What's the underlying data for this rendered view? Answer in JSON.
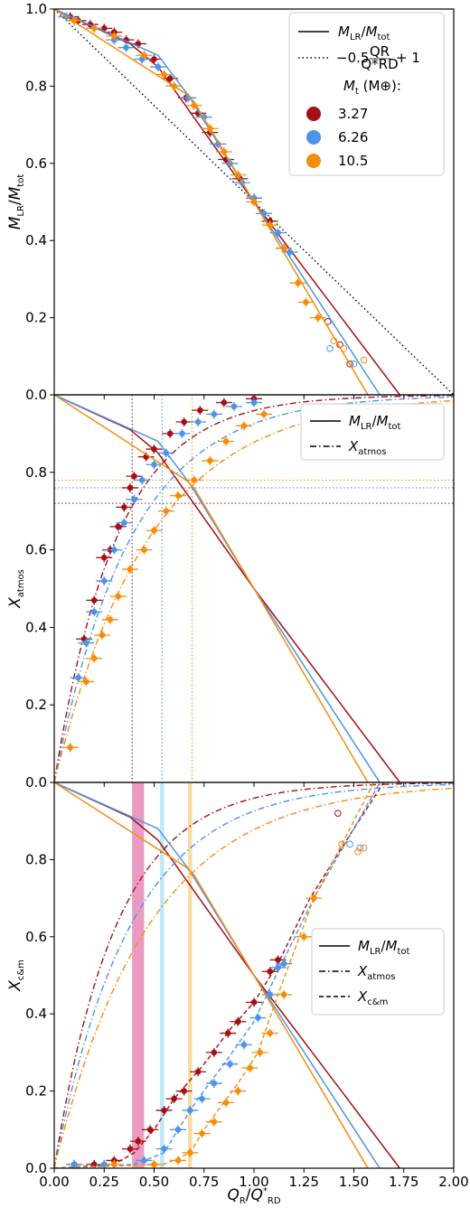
{
  "colors": {
    "mt_3_27": "#a50f15",
    "mt_6_26": "#4b94e8",
    "mt_10_5": "#f58d0b",
    "axis": "#000000",
    "band_3_27": "#e78ab7",
    "band_6_26": "#b4e3f4",
    "band_10_5": "#fad58b"
  },
  "chart_data": [
    {
      "type": "scatter",
      "panel": "top",
      "xlabel": "QR/Q*RD",
      "ylabel": "MLR/Mtot",
      "xlim": [
        0,
        2
      ],
      "ylim": [
        0,
        1
      ],
      "xticks": [
        "0.00",
        "0.25",
        "0.50",
        "0.75",
        "1.00",
        "1.25",
        "1.50",
        "1.75",
        "2.00"
      ],
      "yticks": [
        "0.0",
        "0.2",
        "0.4",
        "0.6",
        "0.8",
        "1.0"
      ],
      "legend": {
        "placement": "top-right",
        "entries": [
          "MLR/Mtot",
          "−0.5 QR/Q*RD + 1"
        ],
        "mt_title": "Mt (M⊕):",
        "mt_values": [
          "3.27",
          "6.26",
          "10.5"
        ]
      },
      "reference_line": [
        [
          0,
          1
        ],
        [
          2,
          0
        ]
      ],
      "series": [
        {
          "name": "3.27",
          "curve": [
            [
              0,
              1
            ],
            [
              0.38,
              0.91
            ],
            [
              0.52,
              0.85
            ],
            [
              1.0,
              0.5
            ],
            [
              1.73,
              0
            ]
          ],
          "points": [
            [
              0.08,
              0.98
            ],
            [
              0.12,
              0.97
            ],
            [
              0.18,
              0.96
            ],
            [
              0.25,
              0.95
            ],
            [
              0.3,
              0.94
            ],
            [
              0.36,
              0.92
            ],
            [
              0.42,
              0.91
            ],
            [
              0.5,
              0.87
            ],
            [
              0.58,
              0.82
            ],
            [
              0.66,
              0.77
            ],
            [
              0.72,
              0.73
            ],
            [
              0.78,
              0.68
            ],
            [
              0.86,
              0.61
            ],
            [
              0.93,
              0.56
            ],
            [
              1.0,
              0.51
            ],
            [
              1.08,
              0.45
            ],
            [
              1.15,
              0.38
            ]
          ],
          "open_points": [
            [
              1.37,
              0.19
            ],
            [
              1.43,
              0.13
            ],
            [
              1.48,
              0.08
            ]
          ]
        },
        {
          "name": "6.26",
          "curve": [
            [
              0,
              1
            ],
            [
              0.52,
              0.88
            ],
            [
              0.68,
              0.77
            ],
            [
              1.0,
              0.5
            ],
            [
              1.63,
              0
            ]
          ],
          "points": [
            [
              0.06,
              0.98
            ],
            [
              0.1,
              0.97
            ],
            [
              0.2,
              0.95
            ],
            [
              0.3,
              0.92
            ],
            [
              0.36,
              0.9
            ],
            [
              0.44,
              0.87
            ],
            [
              0.52,
              0.85
            ],
            [
              0.6,
              0.8
            ],
            [
              0.67,
              0.77
            ],
            [
              0.75,
              0.72
            ],
            [
              0.82,
              0.65
            ],
            [
              0.88,
              0.6
            ],
            [
              0.94,
              0.55
            ],
            [
              1.0,
              0.51
            ],
            [
              1.05,
              0.47
            ],
            [
              1.12,
              0.42
            ],
            [
              1.18,
              0.37
            ]
          ],
          "open_points": [
            [
              1.38,
              0.12
            ],
            [
              1.5,
              0.08
            ]
          ]
        },
        {
          "name": "10.5",
          "curve": [
            [
              0,
              1
            ],
            [
              0.66,
              0.78
            ],
            [
              0.7,
              0.76
            ],
            [
              1.0,
              0.5
            ],
            [
              1.57,
              0
            ]
          ],
          "points": [
            [
              0.1,
              0.97
            ],
            [
              0.2,
              0.95
            ],
            [
              0.3,
              0.93
            ],
            [
              0.45,
              0.88
            ],
            [
              0.55,
              0.83
            ],
            [
              0.6,
              0.8
            ],
            [
              0.7,
              0.75
            ],
            [
              0.78,
              0.69
            ],
            [
              0.85,
              0.63
            ],
            [
              0.92,
              0.57
            ],
            [
              1.0,
              0.5
            ],
            [
              1.08,
              0.44
            ],
            [
              1.15,
              0.38
            ],
            [
              1.22,
              0.29
            ],
            [
              1.26,
              0.24
            ],
            [
              1.32,
              0.2
            ]
          ],
          "open_points": [
            [
              1.4,
              0.14
            ],
            [
              1.45,
              0.12
            ],
            [
              1.55,
              0.09
            ]
          ]
        }
      ]
    },
    {
      "type": "scatter",
      "panel": "middle",
      "xlabel": "QR/Q*RD",
      "ylabel": "Xatmos",
      "xlim": [
        0,
        2
      ],
      "ylim": [
        0,
        1
      ],
      "xticks": [
        "0.00",
        "0.25",
        "0.50",
        "0.75",
        "1.00",
        "1.25",
        "1.50",
        "1.75",
        "2.00"
      ],
      "yticks": [
        "0.0",
        "0.2",
        "0.4",
        "0.6",
        "0.8"
      ],
      "legend": {
        "placement": "top-right",
        "entries": [
          "MLR/Mtot",
          "Xatmos"
        ]
      },
      "crossings": [
        {
          "name": "3.27",
          "x": 0.39,
          "y": 0.72
        },
        {
          "name": "6.26",
          "x": 0.54,
          "y": 0.76
        },
        {
          "name": "10.5",
          "x": 0.69,
          "y": 0.78
        }
      ],
      "series": [
        {
          "name": "3.27",
          "xatmos_k": 3.2,
          "points": [
            [
              0.15,
              0.37
            ],
            [
              0.2,
              0.47
            ],
            [
              0.25,
              0.58
            ],
            [
              0.28,
              0.6
            ],
            [
              0.32,
              0.66
            ],
            [
              0.35,
              0.71
            ],
            [
              0.38,
              0.76
            ],
            [
              0.4,
              0.79
            ],
            [
              0.46,
              0.84
            ],
            [
              0.5,
              0.86
            ],
            [
              0.58,
              0.9
            ],
            [
              0.65,
              0.93
            ],
            [
              0.73,
              0.96
            ],
            [
              0.85,
              0.98
            ],
            [
              1.0,
              0.99
            ]
          ]
        },
        {
          "name": "6.26",
          "xatmos_k": 2.6,
          "points": [
            [
              0.08,
              0.09
            ],
            [
              0.12,
              0.27
            ],
            [
              0.16,
              0.36
            ],
            [
              0.2,
              0.44
            ],
            [
              0.25,
              0.52
            ],
            [
              0.3,
              0.6
            ],
            [
              0.35,
              0.67
            ],
            [
              0.4,
              0.73
            ],
            [
              0.44,
              0.78
            ],
            [
              0.5,
              0.82
            ],
            [
              0.56,
              0.85
            ],
            [
              0.64,
              0.9
            ],
            [
              0.72,
              0.93
            ],
            [
              0.8,
              0.95
            ],
            [
              0.9,
              0.97
            ],
            [
              1.0,
              0.98
            ]
          ]
        },
        {
          "name": "10.5",
          "xatmos_k": 2.1,
          "points": [
            [
              0.08,
              0.09
            ],
            [
              0.16,
              0.26
            ],
            [
              0.2,
              0.32
            ],
            [
              0.24,
              0.38
            ],
            [
              0.28,
              0.42
            ],
            [
              0.32,
              0.48
            ],
            [
              0.38,
              0.55
            ],
            [
              0.45,
              0.6
            ],
            [
              0.5,
              0.65
            ],
            [
              0.56,
              0.7
            ],
            [
              0.62,
              0.74
            ],
            [
              0.7,
              0.78
            ],
            [
              0.78,
              0.83
            ],
            [
              0.86,
              0.88
            ],
            [
              0.95,
              0.92
            ],
            [
              1.05,
              0.95
            ]
          ]
        }
      ]
    },
    {
      "type": "scatter",
      "panel": "bottom",
      "xlabel": "QR/Q*RD",
      "ylabel": "Xc&m",
      "xlim": [
        0,
        2
      ],
      "ylim": [
        0,
        1
      ],
      "xticks": [
        "0.00",
        "0.25",
        "0.50",
        "0.75",
        "1.00",
        "1.25",
        "1.50",
        "1.75",
        "2.00"
      ],
      "yticks": [
        "0.0",
        "0.2",
        "0.4",
        "0.6",
        "0.8"
      ],
      "legend": {
        "placement": "center-right",
        "entries": [
          "MLR/Mtot",
          "Xatmos",
          "Xc&m"
        ]
      },
      "bands": [
        {
          "name": "3.27",
          "x": [
            0.39,
            0.45
          ]
        },
        {
          "name": "6.26",
          "x": [
            0.53,
            0.55
          ]
        },
        {
          "name": "10.5",
          "x": [
            0.67,
            0.69
          ]
        }
      ],
      "series": [
        {
          "name": "3.27",
          "xcm_curve": [
            [
              0,
              0
            ],
            [
              0.3,
              0.01
            ],
            [
              0.4,
              0.04
            ],
            [
              0.5,
              0.1
            ],
            [
              0.6,
              0.18
            ],
            [
              0.75,
              0.27
            ],
            [
              0.88,
              0.36
            ],
            [
              1.0,
              0.43
            ],
            [
              1.12,
              0.53
            ],
            [
              1.28,
              0.7
            ],
            [
              1.5,
              0.88
            ],
            [
              1.65,
              1.0
            ]
          ],
          "points": [
            [
              0.1,
              0.01
            ],
            [
              0.2,
              0.01
            ],
            [
              0.3,
              0.02
            ],
            [
              0.38,
              0.05
            ],
            [
              0.42,
              0.07
            ],
            [
              0.48,
              0.1
            ],
            [
              0.55,
              0.15
            ],
            [
              0.6,
              0.18
            ],
            [
              0.65,
              0.2
            ],
            [
              0.72,
              0.25
            ],
            [
              0.8,
              0.3
            ],
            [
              0.87,
              0.35
            ],
            [
              0.92,
              0.38
            ],
            [
              1.0,
              0.43
            ],
            [
              1.08,
              0.51
            ],
            [
              1.12,
              0.54
            ]
          ],
          "open_points": [
            [
              1.42,
              0.92
            ]
          ]
        },
        {
          "name": "6.26",
          "xcm_curve": [
            [
              0,
              0
            ],
            [
              0.4,
              0.01
            ],
            [
              0.55,
              0.04
            ],
            [
              0.62,
              0.1
            ],
            [
              0.72,
              0.18
            ],
            [
              0.85,
              0.27
            ],
            [
              1.0,
              0.38
            ],
            [
              1.12,
              0.51
            ],
            [
              1.3,
              0.7
            ],
            [
              1.5,
              0.88
            ],
            [
              1.63,
              1.0
            ]
          ],
          "points": [
            [
              0.1,
              0.01
            ],
            [
              0.25,
              0.01
            ],
            [
              0.45,
              0.02
            ],
            [
              0.55,
              0.05
            ],
            [
              0.62,
              0.1
            ],
            [
              0.68,
              0.15
            ],
            [
              0.74,
              0.18
            ],
            [
              0.8,
              0.22
            ],
            [
              0.88,
              0.27
            ],
            [
              0.95,
              0.32
            ],
            [
              1.02,
              0.39
            ],
            [
              1.08,
              0.45
            ],
            [
              1.12,
              0.52
            ],
            [
              1.15,
              0.53
            ]
          ],
          "open_points": [
            [
              1.48,
              0.84
            ],
            [
              1.53,
              0.83
            ]
          ]
        },
        {
          "name": "10.5",
          "xcm_curve": [
            [
              0,
              0
            ],
            [
              0.55,
              0.01
            ],
            [
              0.68,
              0.04
            ],
            [
              0.75,
              0.1
            ],
            [
              0.82,
              0.15
            ],
            [
              0.92,
              0.22
            ],
            [
              1.02,
              0.3
            ],
            [
              1.12,
              0.45
            ],
            [
              1.3,
              0.7
            ],
            [
              1.48,
              0.88
            ],
            [
              1.6,
              1.0
            ]
          ],
          "points": [
            [
              0.3,
              0.01
            ],
            [
              0.5,
              0.01
            ],
            [
              0.62,
              0.02
            ],
            [
              0.68,
              0.04
            ],
            [
              0.74,
              0.09
            ],
            [
              0.8,
              0.12
            ],
            [
              0.86,
              0.17
            ],
            [
              0.92,
              0.2
            ],
            [
              0.98,
              0.26
            ],
            [
              1.03,
              0.3
            ],
            [
              1.08,
              0.35
            ],
            [
              1.15,
              0.45
            ],
            [
              1.25,
              0.6
            ],
            [
              1.3,
              0.7
            ]
          ],
          "open_points": [
            [
              1.44,
              0.84
            ],
            [
              1.52,
              0.82
            ],
            [
              1.55,
              0.83
            ]
          ]
        }
      ]
    }
  ]
}
